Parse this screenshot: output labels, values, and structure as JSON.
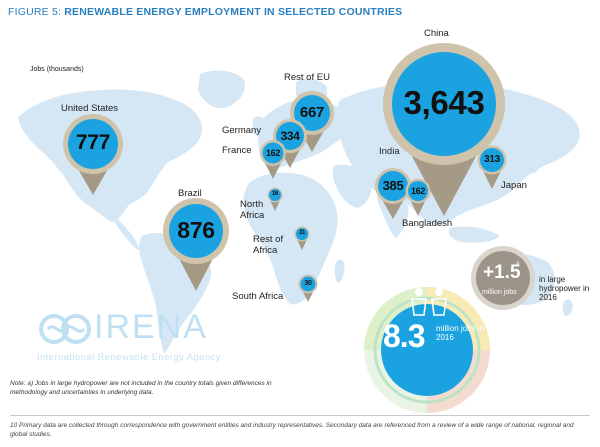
{
  "figure": {
    "title_prefix": "FIGURE 5: ",
    "title_main": "RENEWABLE ENERGY EMPLOYMENT IN SELECTED COUNTRIES",
    "units_label": "Jobs (thousands)"
  },
  "colors": {
    "title_blue": "#2a7fbf",
    "map_land": "#d5e7f4",
    "pin_fill": "#1aa3e0",
    "pin_ring": "#cfc3ac",
    "pin_tail": "#a59a86",
    "text_dark": "#222222"
  },
  "countries": [
    {
      "id": "united-states",
      "label": "United States",
      "value": "777"
    },
    {
      "id": "brazil",
      "label": "Brazil",
      "value": "876"
    },
    {
      "id": "rest-of-eu",
      "label": "Rest of EU",
      "value": "667"
    },
    {
      "id": "germany",
      "label": "Germany",
      "value": "334"
    },
    {
      "id": "france",
      "label": "France",
      "value": "162"
    },
    {
      "id": "north-africa",
      "label": "North Africa",
      "value": "16"
    },
    {
      "id": "rest-of-africa",
      "label": "Rest of Africa",
      "value": "31"
    },
    {
      "id": "south-africa",
      "label": "South Africa",
      "value": "30"
    },
    {
      "id": "china",
      "label": "China",
      "value": "3,643"
    },
    {
      "id": "india",
      "label": "India",
      "value": "385"
    },
    {
      "id": "bangladesh",
      "label": "Bangladesh",
      "value": "162"
    },
    {
      "id": "japan",
      "label": "Japan",
      "value": "313"
    }
  ],
  "summary": {
    "total_value": "8.3",
    "total_unit": "million jobs in 2016",
    "hydro_value": "+1.5",
    "hydro_superscript": "a",
    "hydro_unit": "million jobs",
    "hydro_desc": "in large hydropower in 2016"
  },
  "logo": {
    "word": "IRENA",
    "subtitle": "International Renewable Energy Agency"
  },
  "note": "Note: a) Jobs in large hydropower are not included in the country totals given differences in methodology and uncertainties in underlying data.",
  "footnote": "10 Primary data are collected through correspondence with government entities and industry representatives. Secondary data are referenced from a review of a wide range of national, regional and global studies."
}
